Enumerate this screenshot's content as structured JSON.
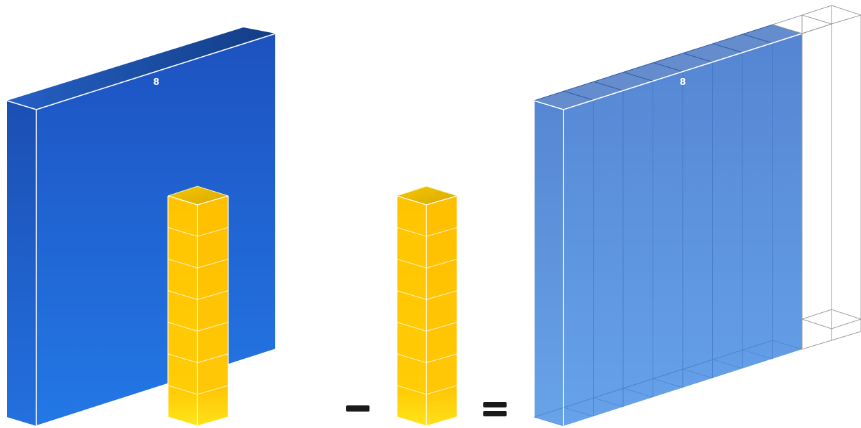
{
  "diagram": {
    "left_slab_label": "8",
    "result_slab_label": "8",
    "minus_symbol": "−",
    "equals_symbol": "=",
    "column_cube_count": 7,
    "result_strip_count": 9,
    "colors": {
      "slab_top": "#184a94",
      "slab_front_top": "#1d52c0",
      "slab_front_bottom": "#2378e6",
      "slab_side": "#1c4fb0",
      "result_front_top": "#5585d2",
      "result_front_bottom": "#66a2ea",
      "cube_front_top": "#ffc400",
      "cube_front_bottom": "#ffe419",
      "cube_top": "#f0c000",
      "operator": "#1a1a1a",
      "edge": "#ffffff"
    }
  }
}
